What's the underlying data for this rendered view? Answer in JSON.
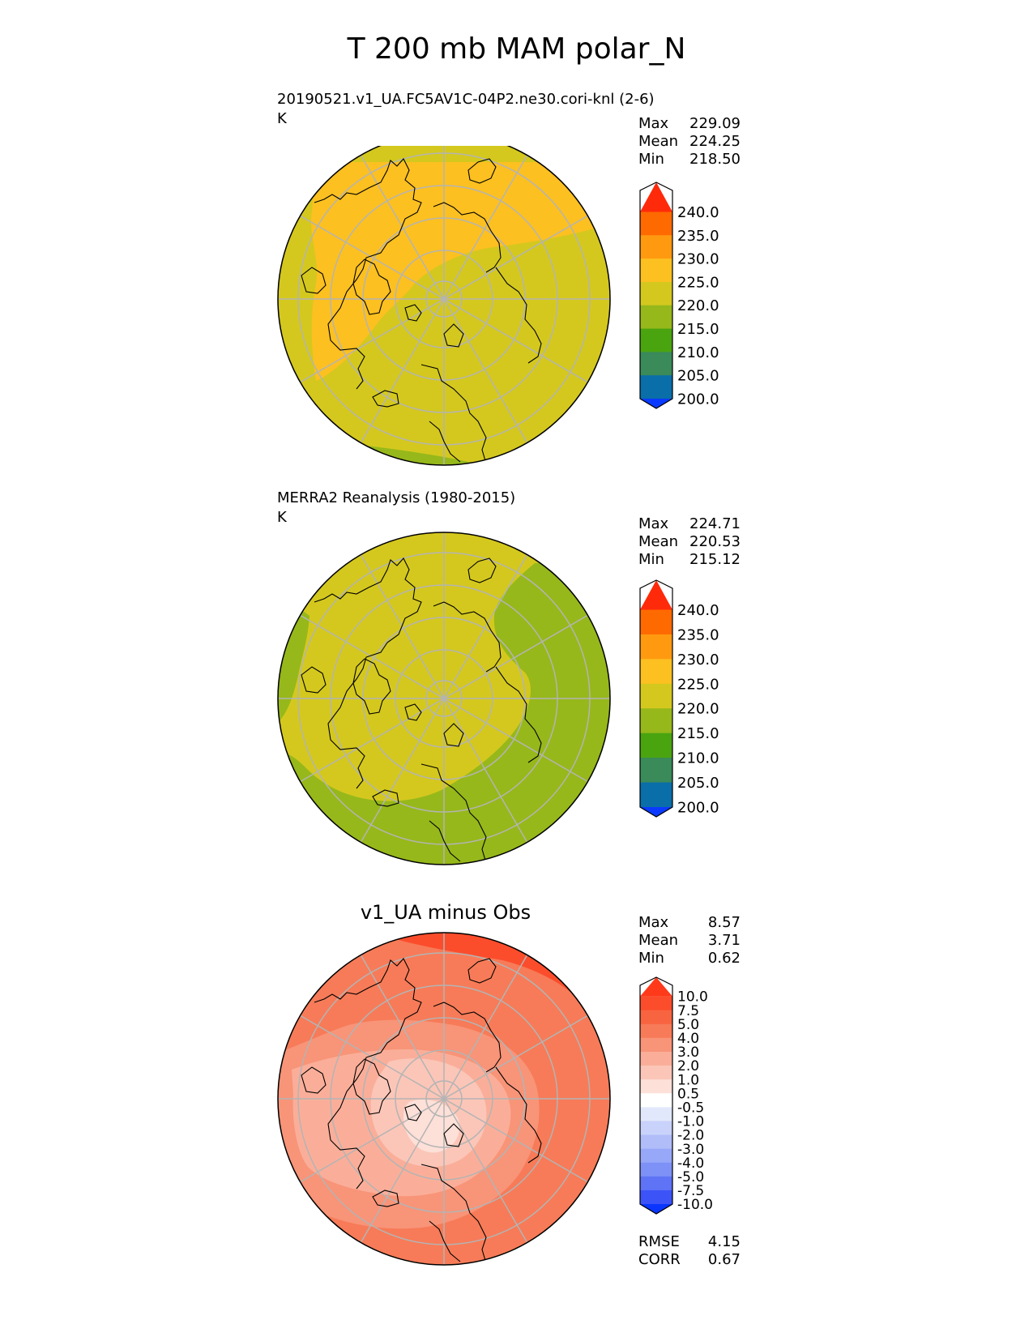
{
  "title": "T 200 mb MAM polar_N",
  "panels": [
    {
      "id": "test",
      "title": "20190521.v1_UA.FC5AV1C-04P2.ne30.cori-knl (2-6)",
      "units": "K",
      "stats": [
        {
          "label": "Max",
          "value": "229.09"
        },
        {
          "label": "Mean",
          "value": "224.25"
        },
        {
          "label": "Min",
          "value": "218.50"
        }
      ],
      "colorbar": {
        "ticks": [
          "240.0",
          "235.0",
          "230.0",
          "225.0",
          "220.0",
          "215.0",
          "210.0",
          "205.0",
          "200.0"
        ],
        "colors": [
          "#ff2a0a",
          "#ff6a00",
          "#ff9a10",
          "#fcc020",
          "#d4c81e",
          "#96b81a",
          "#4aa410",
          "#3a8a5a",
          "#0a6ea8",
          "#0a3aff"
        ]
      }
    },
    {
      "id": "reference",
      "title": "MERRA2 Reanalysis (1980-2015)",
      "units": "K",
      "stats": [
        {
          "label": "Max",
          "value": "224.71"
        },
        {
          "label": "Mean",
          "value": "220.53"
        },
        {
          "label": "Min",
          "value": "215.12"
        }
      ],
      "colorbar": {
        "ticks": [
          "240.0",
          "235.0",
          "230.0",
          "225.0",
          "220.0",
          "215.0",
          "210.0",
          "205.0",
          "200.0"
        ],
        "colors": [
          "#ff2a0a",
          "#ff6a00",
          "#ff9a10",
          "#fcc020",
          "#d4c81e",
          "#96b81a",
          "#4aa410",
          "#3a8a5a",
          "#0a6ea8",
          "#0a3aff"
        ]
      }
    },
    {
      "id": "difference",
      "title": "v1_UA minus Obs",
      "stats": [
        {
          "label": "Max",
          "value": "8.57"
        },
        {
          "label": "Mean",
          "value": "3.71"
        },
        {
          "label": "Min",
          "value": "0.62"
        }
      ],
      "metrics": [
        {
          "label": "RMSE",
          "value": "4.15"
        },
        {
          "label": "CORR",
          "value": "0.67"
        }
      ],
      "colorbar": {
        "ticks": [
          "10.0",
          "7.5",
          "5.0",
          "4.0",
          "3.0",
          "2.0",
          "1.0",
          "0.5",
          "-0.5",
          "-1.0",
          "-2.0",
          "-3.0",
          "-4.0",
          "-5.0",
          "-7.5",
          "-10.0"
        ],
        "colors": [
          "#ff3a1a",
          "#fb4d2c",
          "#f8643f",
          "#f77b58",
          "#f89478",
          "#faae99",
          "#fbc6b8",
          "#fde0d8",
          "#ffffff",
          "#e2e8fb",
          "#c9d2fa",
          "#b1bdf9",
          "#98a8f8",
          "#7e91f6",
          "#5f73f6",
          "#3c53f8",
          "#0a35ff"
        ]
      }
    }
  ],
  "chart_data": [
    {
      "type": "heatmap",
      "title": "20190521.v1_UA.FC5AV1C-04P2.ne30.cori-knl (2-6)",
      "units": "K",
      "projection": "north polar stereographic",
      "levels": [
        200,
        205,
        210,
        215,
        220,
        225,
        230,
        235,
        240
      ],
      "extend": "both",
      "max": 229.09,
      "mean": 224.25,
      "min": 218.5
    },
    {
      "type": "heatmap",
      "title": "MERRA2 Reanalysis (1980-2015)",
      "units": "K",
      "projection": "north polar stereographic",
      "levels": [
        200,
        205,
        210,
        215,
        220,
        225,
        230,
        235,
        240
      ],
      "extend": "both",
      "max": 224.71,
      "mean": 220.53,
      "min": 215.12
    },
    {
      "type": "heatmap",
      "title": "v1_UA minus Obs",
      "projection": "north polar stereographic",
      "levels": [
        -10.0,
        -7.5,
        -5.0,
        -4.0,
        -3.0,
        -2.0,
        -1.0,
        -0.5,
        0.5,
        1.0,
        2.0,
        3.0,
        4.0,
        5.0,
        7.5,
        10.0
      ],
      "extend": "both",
      "max": 8.57,
      "mean": 3.71,
      "min": 0.62,
      "rmse": 4.15,
      "corr": 0.67
    }
  ]
}
